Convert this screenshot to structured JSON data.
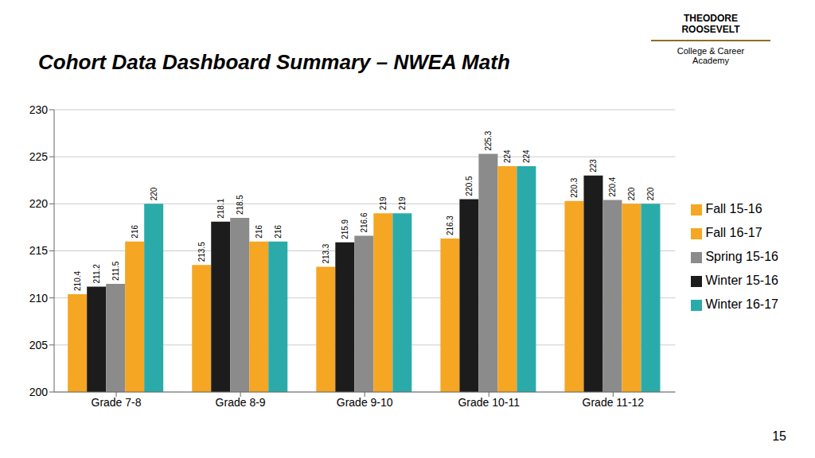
{
  "chart_data": {
    "type": "bar",
    "title": "Cohort Data Dashboard Summary – NWEA Math",
    "categories": [
      "Grade 7-8",
      "Grade 8-9",
      "Grade 9-10",
      "Grade 10-11",
      "Grade 11-12"
    ],
    "series": [
      {
        "name": "Fall 15-16",
        "color": "#F5A623",
        "values": [
          210.4,
          213.5,
          213.3,
          216.3,
          220.3
        ]
      },
      {
        "name": "Winter 15-16",
        "color": "#1C1C1C",
        "values": [
          211.2,
          218.1,
          215.9,
          220.5,
          223
        ]
      },
      {
        "name": "Spring 15-16",
        "color": "#8B8B8B",
        "values": [
          211.5,
          218.5,
          216.6,
          225.3,
          220.4
        ]
      },
      {
        "name": "Fall 16-17",
        "color": "#F5A623",
        "values": [
          216,
          216,
          219,
          224,
          220
        ]
      },
      {
        "name": "Winter 16-17",
        "color": "#2AABAA",
        "values": [
          220,
          216,
          219,
          224,
          220
        ]
      }
    ],
    "ylim": [
      200,
      230
    ],
    "yticks": [
      200,
      205,
      210,
      215,
      220,
      225,
      230
    ],
    "grid": true,
    "legend": "right",
    "data_labels": true,
    "annotations": [
      "15",
      "THEODORE\nROOSEVELT",
      "College & Career\nAcademy"
    ]
  }
}
